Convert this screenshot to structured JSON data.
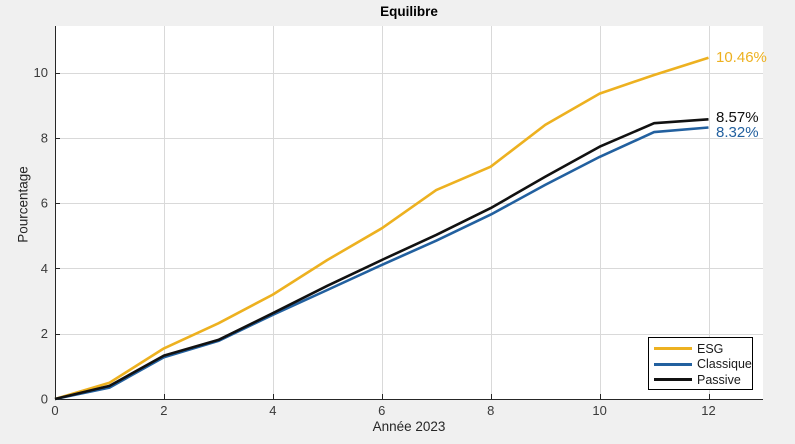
{
  "colors": {
    "figure_bg": "#F0F0F0",
    "plot_bg": "#FFFFFF",
    "grid": "#D9D9D9",
    "axis": "#262626",
    "tick_label": "#3A3A3A"
  },
  "chart_data": {
    "type": "line",
    "title": "Equilibre",
    "xlabel": "Année 2023",
    "ylabel": "Pourcentage",
    "xlim": [
      0,
      13
    ],
    "ylim": [
      0,
      11.43
    ],
    "xticks": [
      0,
      2,
      4,
      6,
      8,
      10,
      12
    ],
    "yticks": [
      0,
      2,
      4,
      6,
      8,
      10
    ],
    "grid": true,
    "legend_position": "bottom-right",
    "x": [
      0,
      1,
      2,
      3,
      4,
      5,
      6,
      7,
      8,
      9,
      10,
      11,
      12
    ],
    "series": [
      {
        "name": "ESG",
        "color": "#EDB120",
        "end_label": "10.46%",
        "values": [
          0,
          0.5,
          1.55,
          2.32,
          3.2,
          4.26,
          5.23,
          6.4,
          7.12,
          8.4,
          9.36,
          9.93,
          10.46
        ]
      },
      {
        "name": "Classique",
        "color": "#22609F",
        "end_label": "8.32%",
        "values": [
          0,
          0.35,
          1.28,
          1.78,
          2.58,
          3.34,
          4.11,
          4.85,
          5.65,
          6.56,
          7.42,
          8.18,
          8.32
        ]
      },
      {
        "name": "Passive",
        "color": "#111111",
        "end_label": "8.57%",
        "values": [
          0,
          0.4,
          1.33,
          1.81,
          2.63,
          3.47,
          4.26,
          5.03,
          5.85,
          6.81,
          7.73,
          8.45,
          8.57
        ]
      }
    ]
  }
}
